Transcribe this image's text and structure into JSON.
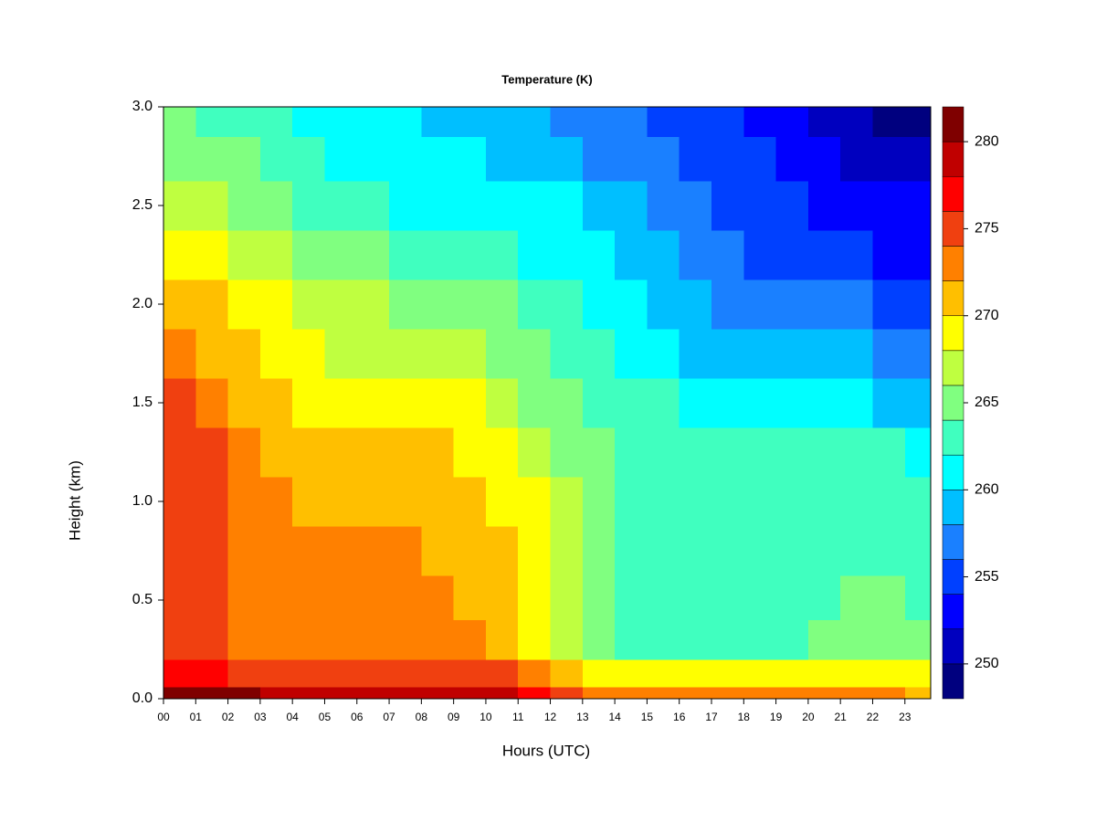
{
  "chart_data": {
    "type": "heatmap",
    "title": "Temperature (K)",
    "x_label": "Hours (UTC)",
    "y_label": "Height (km)",
    "xlim": [
      0,
      23.8
    ],
    "ylim": [
      0,
      3
    ],
    "xticks": [
      {
        "value": 0,
        "label": "00"
      },
      {
        "value": 1,
        "label": "01"
      },
      {
        "value": 2,
        "label": "02"
      },
      {
        "value": 3,
        "label": "03"
      },
      {
        "value": 4,
        "label": "04"
      },
      {
        "value": 5,
        "label": "05"
      },
      {
        "value": 6,
        "label": "06"
      },
      {
        "value": 7,
        "label": "07"
      },
      {
        "value": 8,
        "label": "08"
      },
      {
        "value": 9,
        "label": "09"
      },
      {
        "value": 10,
        "label": "10"
      },
      {
        "value": 11,
        "label": "11"
      },
      {
        "value": 12,
        "label": "12"
      },
      {
        "value": 13,
        "label": "13"
      },
      {
        "value": 14,
        "label": "14"
      },
      {
        "value": 15,
        "label": "15"
      },
      {
        "value": 16,
        "label": "16"
      },
      {
        "value": 17,
        "label": "17"
      },
      {
        "value": 18,
        "label": "18"
      },
      {
        "value": 19,
        "label": "19"
      },
      {
        "value": 20,
        "label": "20"
      },
      {
        "value": 21,
        "label": "21"
      },
      {
        "value": 22,
        "label": "22"
      },
      {
        "value": 23,
        "label": "23"
      }
    ],
    "yticks": [
      {
        "value": 0,
        "label": "0.0"
      },
      0.5,
      {
        "value": 1,
        "label": "1.0"
      },
      1.5,
      {
        "value": 2,
        "label": "2.0"
      },
      2.5,
      {
        "value": 3,
        "label": "3.0"
      }
    ],
    "x": [
      0.5,
      1.5,
      2.5,
      3.5,
      4.5,
      5.5,
      6.5,
      7.5,
      8.5,
      9.5,
      10.5,
      11.5,
      12.5,
      13.5,
      14.5,
      15.5,
      16.5,
      17.5,
      18.5,
      19.5,
      20.5,
      21.5,
      22.5,
      23.5
    ],
    "y": [
      0.02,
      0.1,
      0.3,
      0.5,
      0.75,
      1.0,
      1.25,
      1.5,
      1.75,
      2.0,
      2.25,
      2.5,
      2.75,
      2.95
    ],
    "z": [
      [
        281,
        281,
        280,
        279,
        279,
        279,
        279,
        279,
        279,
        278,
        278,
        277,
        274,
        273,
        273,
        273,
        273,
        273,
        273,
        273,
        273,
        273,
        272,
        271
      ],
      [
        277,
        277,
        275,
        275,
        275,
        275,
        275,
        275,
        275,
        274,
        274,
        272,
        270,
        269,
        269,
        269,
        269,
        269,
        269,
        269,
        269,
        269,
        268,
        268
      ],
      [
        275,
        275,
        273,
        273,
        273,
        273,
        273,
        273,
        273,
        272,
        271,
        269,
        267,
        265,
        263,
        263,
        263,
        263,
        263,
        263,
        265,
        265,
        265,
        265
      ],
      [
        275,
        275,
        273,
        273,
        273,
        273,
        273,
        273,
        272,
        271,
        271,
        269,
        267,
        265,
        263,
        263,
        263,
        263,
        263,
        263,
        263,
        264,
        264,
        263
      ],
      [
        275,
        275,
        273,
        273,
        273,
        273,
        273,
        273,
        271,
        271,
        271,
        269,
        267,
        265,
        263,
        263,
        263,
        263,
        263,
        263,
        263,
        263,
        263,
        263
      ],
      [
        275,
        275,
        273,
        273,
        271,
        271,
        271,
        271,
        271,
        271,
        269,
        269,
        267,
        265,
        263,
        263,
        263,
        263,
        263,
        263,
        263,
        263,
        263,
        263
      ],
      [
        275,
        275,
        273,
        271,
        271,
        271,
        271,
        271,
        271,
        269,
        269,
        267,
        265,
        265,
        263,
        263,
        263,
        263,
        263,
        263,
        263,
        263,
        263,
        261
      ],
      [
        275,
        273,
        271,
        271,
        269,
        269,
        269,
        269,
        269,
        269,
        267,
        265,
        265,
        263,
        263,
        263,
        261,
        261,
        261,
        261,
        261,
        261,
        259,
        259
      ],
      [
        273,
        271,
        271,
        269,
        269,
        267,
        267,
        267,
        267,
        267,
        265,
        265,
        263,
        263,
        261,
        261,
        259,
        259,
        259,
        259,
        259,
        259,
        257,
        257
      ],
      [
        271,
        271,
        269,
        269,
        267,
        267,
        267,
        265,
        265,
        265,
        265,
        263,
        263,
        261,
        261,
        259,
        259,
        257,
        257,
        257,
        257,
        257,
        255,
        255
      ],
      [
        269,
        269,
        267,
        267,
        265,
        265,
        265,
        263,
        263,
        263,
        263,
        261,
        261,
        261,
        259,
        259,
        257,
        257,
        255,
        255,
        255,
        255,
        253,
        253
      ],
      [
        267,
        267,
        265,
        265,
        263,
        263,
        263,
        261,
        261,
        261,
        261,
        261,
        261,
        259,
        259,
        257,
        257,
        255,
        255,
        255,
        253,
        253,
        253,
        253
      ],
      [
        265,
        265,
        265,
        263,
        263,
        261,
        261,
        261,
        261,
        261,
        259,
        259,
        259,
        257,
        257,
        257,
        255,
        255,
        255,
        253,
        253,
        251,
        251,
        251
      ],
      [
        265,
        263,
        263,
        263,
        261,
        261,
        261,
        261,
        259,
        259,
        259,
        259,
        257,
        257,
        257,
        255,
        255,
        255,
        253,
        253,
        251,
        251,
        249,
        249
      ]
    ],
    "levels": [
      248,
      250,
      252,
      254,
      256,
      258,
      260,
      262,
      264,
      266,
      268,
      270,
      272,
      274,
      276,
      278,
      280,
      282
    ],
    "colors": [
      "#00007f",
      "#0000bf",
      "#0000ff",
      "#0040ff",
      "#1a80ff",
      "#00bfff",
      "#00ffff",
      "#40ffbf",
      "#80ff80",
      "#bfff40",
      "#ffff00",
      "#ffbf00",
      "#ff8000",
      "#f04010",
      "#ff0000",
      "#c00000",
      "#7f0000"
    ],
    "zlim": [
      248,
      282
    ],
    "zticks": [
      250,
      255,
      260,
      265,
      270,
      275,
      280
    ]
  }
}
